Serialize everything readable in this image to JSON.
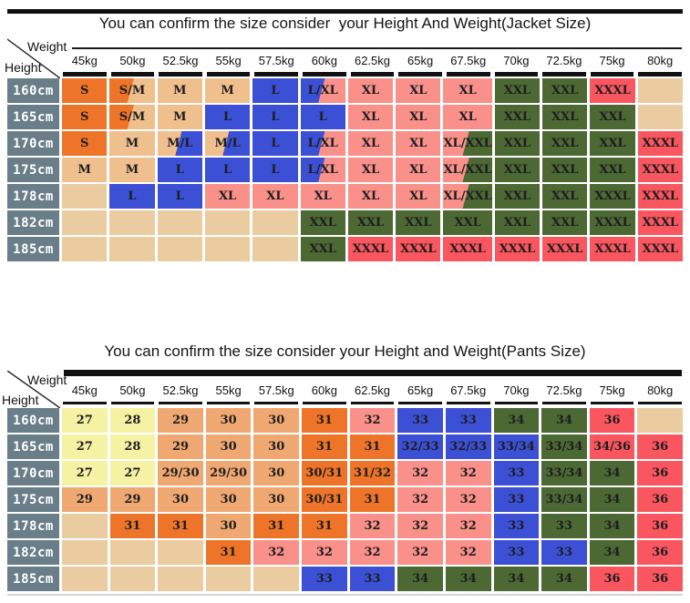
{
  "colors": {
    "orange": "#ED7428",
    "tan": "#F0BF8E",
    "blue": "#3C50D6",
    "pink": "#F9908A",
    "green": "#4C6934",
    "red": "#F9565F",
    "empty": "#EACCA0",
    "yellow": "#F6F2A3",
    "salmon": "#EFA872",
    "header_gray": "#697E89",
    "divider_black": "#111111"
  },
  "chart_data": [
    {
      "type": "table",
      "id": "jacket",
      "title": "You can confirm the size consider  your Height And Weight(Jacket Size)",
      "corner": {
        "weight_label": "Weight",
        "height_label": "Height"
      },
      "weight_headers": [
        "45kg",
        "50kg",
        "52.5kg",
        "55kg",
        "57.5kg",
        "60kg",
        "62.5kg",
        "65kg",
        "67.5kg",
        "70kg",
        "72.5kg",
        "75kg",
        "80kg"
      ],
      "height_rows": [
        "160cm",
        "165cm",
        "170cm",
        "175cm",
        "178cm",
        "182cm",
        "185cm"
      ],
      "cells": [
        [
          [
            "S",
            "orange"
          ],
          [
            "S/M",
            "orange|tan"
          ],
          [
            "M",
            "tan"
          ],
          [
            "M",
            "tan"
          ],
          [
            "L",
            "blue"
          ],
          [
            "L/XL",
            "blue|pink"
          ],
          [
            "XL",
            "pink"
          ],
          [
            "XL",
            "pink"
          ],
          [
            "XL",
            "pink"
          ],
          [
            "XXL",
            "green"
          ],
          [
            "XXL",
            "green"
          ],
          [
            "XXXL",
            "red"
          ],
          [
            "",
            "empty"
          ]
        ],
        [
          [
            "S",
            "orange"
          ],
          [
            "S/M",
            "orange|tan"
          ],
          [
            "M",
            "tan"
          ],
          [
            "L",
            "blue"
          ],
          [
            "L",
            "blue"
          ],
          [
            "L",
            "blue"
          ],
          [
            "XL",
            "pink"
          ],
          [
            "XL",
            "pink"
          ],
          [
            "XL",
            "pink"
          ],
          [
            "XXL",
            "green"
          ],
          [
            "XXL",
            "green"
          ],
          [
            "XXL",
            "green"
          ],
          [
            "",
            "empty"
          ]
        ],
        [
          [
            "S",
            "orange"
          ],
          [
            "M",
            "tan"
          ],
          [
            "M/L",
            "tan|blue"
          ],
          [
            "M/L",
            "tan|blue"
          ],
          [
            "L",
            "blue"
          ],
          [
            "L/XL",
            "blue|pink"
          ],
          [
            "XL",
            "pink"
          ],
          [
            "XL",
            "pink"
          ],
          [
            "XL/XXL",
            "pink|green"
          ],
          [
            "XXL",
            "green"
          ],
          [
            "XXL",
            "green"
          ],
          [
            "XXL",
            "green"
          ],
          [
            "XXXL",
            "red"
          ]
        ],
        [
          [
            "M",
            "tan"
          ],
          [
            "M",
            "tan"
          ],
          [
            "L",
            "blue"
          ],
          [
            "L",
            "blue"
          ],
          [
            "L",
            "blue"
          ],
          [
            "L/XL",
            "blue|pink"
          ],
          [
            "XL",
            "pink"
          ],
          [
            "XL",
            "pink"
          ],
          [
            "XL/XXL",
            "pink|green"
          ],
          [
            "XXL",
            "green"
          ],
          [
            "XXL",
            "green"
          ],
          [
            "XXL",
            "green"
          ],
          [
            "XXXL",
            "red"
          ]
        ],
        [
          [
            "",
            "empty"
          ],
          [
            "L",
            "blue"
          ],
          [
            "L",
            "blue"
          ],
          [
            "XL",
            "pink"
          ],
          [
            "XL",
            "pink"
          ],
          [
            "XL",
            "pink"
          ],
          [
            "XL",
            "pink"
          ],
          [
            "XL",
            "pink"
          ],
          [
            "XL/XXL",
            "pink|green"
          ],
          [
            "XXL",
            "green"
          ],
          [
            "XXL",
            "green"
          ],
          [
            "XXXL",
            "green"
          ],
          [
            "XXXL",
            "red"
          ]
        ],
        [
          [
            "",
            "empty"
          ],
          [
            "",
            "empty"
          ],
          [
            "",
            "empty"
          ],
          [
            "",
            "empty"
          ],
          [
            "",
            "empty"
          ],
          [
            "XXL",
            "green"
          ],
          [
            "XXL",
            "green"
          ],
          [
            "XXL",
            "green"
          ],
          [
            "XXL",
            "green"
          ],
          [
            "XXL",
            "green"
          ],
          [
            "XXL",
            "green"
          ],
          [
            "XXXL",
            "green"
          ],
          [
            "XXXL",
            "red"
          ]
        ],
        [
          [
            "",
            "empty"
          ],
          [
            "",
            "empty"
          ],
          [
            "",
            "empty"
          ],
          [
            "",
            "empty"
          ],
          [
            "",
            "empty"
          ],
          [
            "XXL",
            "green"
          ],
          [
            "XXXL",
            "red"
          ],
          [
            "XXXL",
            "red"
          ],
          [
            "XXXL",
            "red"
          ],
          [
            "XXXL",
            "red"
          ],
          [
            "XXXL",
            "red"
          ],
          [
            "XXXL",
            "red"
          ],
          [
            "XXXL",
            "red"
          ]
        ]
      ]
    },
    {
      "type": "table",
      "id": "pants",
      "title": "You can confirm the size consider your Height and Weight(Pants Size)",
      "corner": {
        "weight_label": "Weight",
        "height_label": "Height"
      },
      "weight_headers": [
        "45kg",
        "50kg",
        "52.5kg",
        "55kg",
        "57.5kg",
        "60kg",
        "62.5kg",
        "65kg",
        "67.5kg",
        "70kg",
        "72.5kg",
        "75kg",
        "80kg"
      ],
      "height_rows": [
        "160cm",
        "165cm",
        "170cm",
        "175cm",
        "178cm",
        "182cm",
        "185cm"
      ],
      "cells": [
        [
          [
            "27",
            "yellow"
          ],
          [
            "28",
            "yellow"
          ],
          [
            "29",
            "salmon"
          ],
          [
            "30",
            "salmon"
          ],
          [
            "30",
            "salmon"
          ],
          [
            "31",
            "orange"
          ],
          [
            "32",
            "pink"
          ],
          [
            "33",
            "blue"
          ],
          [
            "33",
            "blue"
          ],
          [
            "34",
            "green"
          ],
          [
            "34",
            "green"
          ],
          [
            "36",
            "red"
          ],
          [
            "",
            "empty"
          ]
        ],
        [
          [
            "27",
            "yellow"
          ],
          [
            "28",
            "yellow"
          ],
          [
            "29",
            "salmon"
          ],
          [
            "30",
            "salmon"
          ],
          [
            "30",
            "salmon"
          ],
          [
            "31",
            "orange"
          ],
          [
            "31",
            "orange"
          ],
          [
            "32/33",
            "blue"
          ],
          [
            "32/33",
            "blue"
          ],
          [
            "33/34",
            "blue"
          ],
          [
            "33/34",
            "green"
          ],
          [
            "34/36",
            "red"
          ],
          [
            "36",
            "red"
          ]
        ],
        [
          [
            "27",
            "yellow"
          ],
          [
            "27",
            "yellow"
          ],
          [
            "29/30",
            "salmon"
          ],
          [
            "29/30",
            "salmon"
          ],
          [
            "30",
            "salmon"
          ],
          [
            "30/31",
            "orange"
          ],
          [
            "31/32",
            "orange"
          ],
          [
            "32",
            "pink"
          ],
          [
            "32",
            "pink"
          ],
          [
            "33",
            "blue"
          ],
          [
            "33/34",
            "green"
          ],
          [
            "34",
            "green"
          ],
          [
            "36",
            "red"
          ]
        ],
        [
          [
            "29",
            "salmon"
          ],
          [
            "29",
            "salmon"
          ],
          [
            "30",
            "salmon"
          ],
          [
            "30",
            "salmon"
          ],
          [
            "30",
            "salmon"
          ],
          [
            "30/31",
            "orange"
          ],
          [
            "31",
            "orange"
          ],
          [
            "32",
            "pink"
          ],
          [
            "32",
            "pink"
          ],
          [
            "33",
            "blue"
          ],
          [
            "33/34",
            "green"
          ],
          [
            "34",
            "green"
          ],
          [
            "36",
            "red"
          ]
        ],
        [
          [
            "",
            "empty"
          ],
          [
            "31",
            "orange"
          ],
          [
            "31",
            "orange"
          ],
          [
            "30",
            "salmon"
          ],
          [
            "31",
            "orange"
          ],
          [
            "31",
            "orange"
          ],
          [
            "32",
            "pink"
          ],
          [
            "32",
            "pink"
          ],
          [
            "32",
            "pink"
          ],
          [
            "33",
            "blue"
          ],
          [
            "33",
            "green"
          ],
          [
            "34",
            "green"
          ],
          [
            "36",
            "red"
          ]
        ],
        [
          [
            "",
            "empty"
          ],
          [
            "",
            "empty"
          ],
          [
            "",
            "empty"
          ],
          [
            "31",
            "orange"
          ],
          [
            "32",
            "pink"
          ],
          [
            "32",
            "pink"
          ],
          [
            "32",
            "pink"
          ],
          [
            "32",
            "pink"
          ],
          [
            "32",
            "pink"
          ],
          [
            "33",
            "blue"
          ],
          [
            "33",
            "blue"
          ],
          [
            "34",
            "green"
          ],
          [
            "36",
            "red"
          ]
        ],
        [
          [
            "",
            "empty"
          ],
          [
            "",
            "empty"
          ],
          [
            "",
            "empty"
          ],
          [
            "",
            "empty"
          ],
          [
            "",
            "empty"
          ],
          [
            "33",
            "blue"
          ],
          [
            "33",
            "blue"
          ],
          [
            "34",
            "green"
          ],
          [
            "34",
            "green"
          ],
          [
            "34",
            "green"
          ],
          [
            "34",
            "green"
          ],
          [
            "36",
            "red"
          ],
          [
            "36",
            "red"
          ]
        ]
      ]
    }
  ]
}
